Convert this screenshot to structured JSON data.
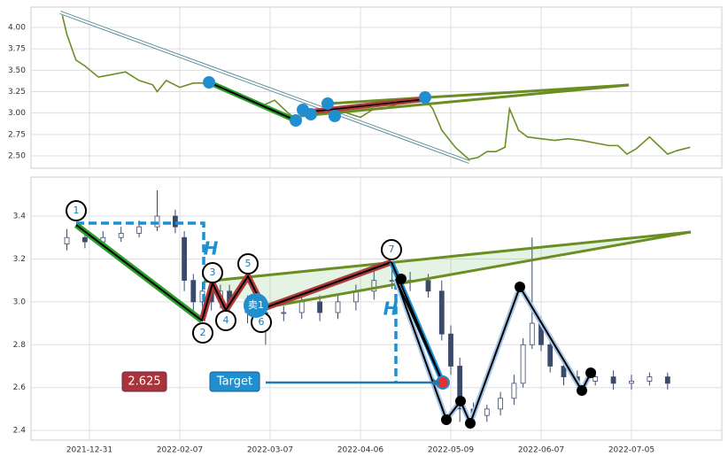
{
  "chart_data": [
    {
      "type": "line",
      "color": "#6b8e23",
      "x": [
        -6,
        -5,
        -3,
        -1,
        2,
        5,
        8,
        11,
        14,
        15,
        17,
        20,
        23,
        26,
        29,
        32,
        35,
        38,
        41,
        44,
        46,
        48,
        51,
        54,
        57,
        60,
        63,
        65,
        68,
        71,
        74,
        76,
        78,
        81,
        84,
        86,
        88,
        90,
        92,
        93,
        95,
        97,
        100,
        103,
        106,
        109,
        112,
        115,
        117,
        119,
        121,
        124,
        126,
        128,
        130,
        133
      ],
      "values": [
        4.14,
        3.92,
        3.62,
        3.55,
        3.42,
        3.45,
        3.48,
        3.38,
        3.33,
        3.25,
        3.38,
        3.3,
        3.35,
        3.35,
        3.3,
        3.22,
        3.18,
        3.08,
        3.15,
        3.0,
        2.92,
        3.05,
        3.0,
        3.05,
        3.0,
        2.95,
        3.05,
        3.05,
        3.1,
        3.12,
        3.18,
        3.05,
        2.8,
        2.6,
        2.46,
        2.48,
        2.55,
        2.55,
        2.6,
        3.05,
        2.8,
        2.72,
        2.7,
        2.68,
        2.7,
        2.68,
        2.65,
        2.62,
        2.62,
        2.52,
        2.58,
        2.72,
        2.62,
        2.52,
        2.56,
        2.6
      ],
      "xlim": [
        -12.94,
        140
      ],
      "xticks": [
        0,
        20,
        40,
        60,
        80,
        100,
        120
      ],
      "ylim": [
        2.355,
        4.238
      ],
      "yticks": [
        {
          "value": 2.5,
          "label": "2.50"
        },
        {
          "value": 2.75,
          "label": "2.75"
        },
        {
          "value": 3,
          "label": "3.00"
        },
        {
          "value": 3.25,
          "label": "3.25"
        },
        {
          "value": 3.5,
          "label": "3.50"
        },
        {
          "value": 3.75,
          "label": "3.75"
        },
        {
          "value": 4,
          "label": "4.00"
        }
      ],
      "grid": true
    },
    {
      "type": "candlestick",
      "up_color": "#ffffff",
      "down_color": "#3b4a6b",
      "x": [
        -5,
        -1,
        3,
        7,
        11,
        15,
        19,
        21,
        23,
        25,
        27,
        29,
        31,
        35,
        39,
        43,
        47,
        51,
        55,
        59,
        63,
        67,
        71,
        75,
        78,
        80,
        82,
        85,
        88,
        91,
        94,
        96,
        98,
        100,
        102,
        105,
        108,
        112,
        116,
        120,
        124,
        128
      ],
      "open": [
        3.27,
        3.3,
        3.28,
        3.3,
        3.32,
        3.35,
        3.4,
        3.3,
        3.1,
        3.0,
        3.05,
        3.0,
        3.05,
        3.0,
        2.95,
        2.95,
        2.95,
        3.0,
        2.95,
        3.0,
        3.05,
        3.1,
        3.1,
        3.1,
        3.05,
        2.85,
        2.7,
        2.5,
        2.47,
        2.5,
        2.55,
        2.62,
        2.8,
        2.9,
        2.8,
        2.7,
        2.65,
        2.63,
        2.65,
        2.62,
        2.63,
        2.65
      ],
      "high": [
        3.34,
        3.32,
        3.33,
        3.35,
        3.38,
        3.52,
        3.43,
        3.33,
        3.13,
        3.09,
        3.08,
        3.08,
        3.08,
        3.03,
        2.99,
        2.98,
        3.03,
        3.03,
        3.03,
        3.08,
        3.14,
        3.18,
        3.14,
        3.13,
        3.1,
        2.89,
        2.74,
        2.53,
        2.52,
        2.58,
        2.66,
        2.83,
        3.3,
        2.93,
        2.83,
        2.73,
        2.68,
        2.68,
        2.68,
        2.66,
        2.67,
        2.67
      ],
      "low": [
        3.24,
        3.25,
        3.26,
        3.28,
        3.3,
        3.33,
        3.32,
        3.05,
        2.96,
        2.98,
        2.96,
        2.97,
        2.96,
        2.9,
        2.8,
        2.91,
        2.92,
        2.91,
        2.92,
        2.96,
        3.01,
        3.06,
        3.05,
        3.02,
        2.82,
        2.66,
        2.44,
        2.42,
        2.44,
        2.47,
        2.52,
        2.6,
        2.78,
        2.77,
        2.67,
        2.61,
        2.6,
        2.61,
        2.59,
        2.59,
        2.61,
        2.59
      ],
      "close": [
        3.3,
        3.28,
        3.3,
        3.32,
        3.35,
        3.4,
        3.35,
        3.1,
        3.0,
        3.05,
        3.0,
        3.05,
        3.0,
        2.95,
        2.95,
        2.95,
        3.0,
        2.95,
        3.0,
        3.05,
        3.1,
        3.1,
        3.1,
        3.05,
        2.85,
        2.7,
        2.5,
        2.47,
        2.5,
        2.55,
        2.62,
        2.8,
        2.9,
        2.8,
        2.7,
        2.65,
        2.63,
        2.65,
        2.62,
        2.63,
        2.65,
        2.62
      ],
      "xlim": [
        -12.94,
        140
      ],
      "xticks": [
        {
          "value": 0,
          "label": "2021-12-31"
        },
        {
          "value": 20,
          "label": "2022-02-07"
        },
        {
          "value": 40,
          "label": "2022-03-07"
        },
        {
          "value": 60,
          "label": "2022-04-06"
        },
        {
          "value": 80,
          "label": "2022-05-09"
        },
        {
          "value": 100,
          "label": "2022-06-07"
        },
        {
          "value": 120,
          "label": "2022-07-05"
        }
      ],
      "ylim": [
        2.355,
        3.582
      ],
      "yticks": [
        {
          "value": 2.4,
          "label": "2.4"
        },
        {
          "value": 2.6,
          "label": "2.6"
        },
        {
          "value": 2.8,
          "label": "2.8"
        },
        {
          "value": 3,
          "label": "3.0"
        },
        {
          "value": 3.2,
          "label": "3.2"
        },
        {
          "value": 3.4,
          "label": "3.4"
        }
      ],
      "grid": true
    }
  ],
  "annotations": {
    "points": [
      "1",
      "2",
      "3",
      "4",
      "5",
      "6",
      "7"
    ],
    "h_labels": [
      "H",
      "H"
    ],
    "price_label": "2.625",
    "target": "Target",
    "signal": "卖1"
  }
}
